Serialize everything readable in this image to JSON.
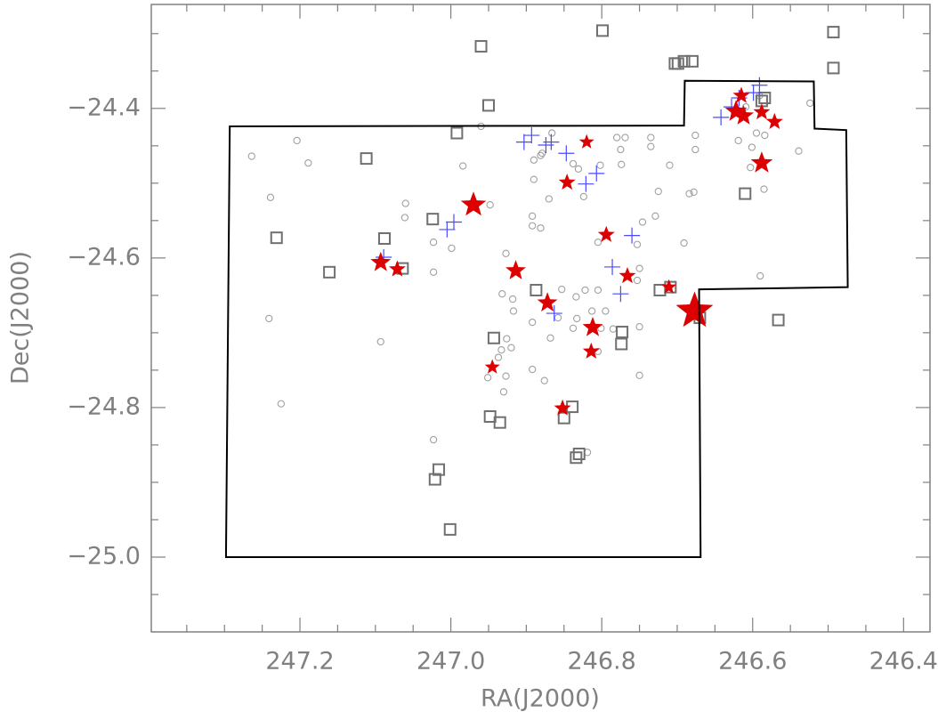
{
  "chart_data": {
    "type": "scatter",
    "xlabel": "RA(J2000)",
    "ylabel": "Dec(J2000)",
    "xlim": [
      247.397,
      246.365
    ],
    "ylim": [
      -25.1,
      -24.261
    ],
    "xticks": [
      247.2,
      {
        "value": 247,
        "label": "247.0"
      },
      246.8,
      246.6,
      246.4
    ],
    "yticks": [
      {
        "value": -24.4,
        "label": "−24.4"
      },
      {
        "value": -24.6,
        "label": "−24.6"
      },
      {
        "value": -24.8,
        "label": "−24.8"
      },
      {
        "value": -25,
        "label": "−25.0"
      }
    ],
    "xminorticks": [
      247.35,
      247.3,
      247.25,
      247.15,
      247.1,
      247.05,
      246.95,
      246.9,
      246.85,
      246.75,
      246.7,
      246.65,
      246.55,
      246.5,
      246.45
    ],
    "yminorticks": [
      -24.3,
      -24.35,
      -24.45,
      -24.5,
      -24.55,
      -24.65,
      -24.7,
      -24.75,
      -24.85,
      -24.9,
      -24.95,
      -25.05
    ],
    "series": [
      {
        "marker": "circle",
        "color": "#a0a0a0",
        "x": [
          247.264,
          247.204,
          247.189,
          247.239,
          247.241,
          247.225,
          247.093,
          247.06,
          247.061,
          247.023,
          247.023,
          247.023,
          246.96,
          246.984,
          246.999,
          246.948,
          246.892,
          246.892,
          246.881,
          246.927,
          246.932,
          246.918,
          246.917,
          246.926,
          246.92,
          246.933,
          246.937,
          246.927,
          246.93,
          246.951,
          246.892,
          246.892,
          246.868,
          246.858,
          246.853,
          246.834,
          246.833,
          246.838,
          246.822,
          246.805,
          246.813,
          246.795,
          246.801,
          246.785,
          246.75,
          246.75,
          246.753,
          246.75,
          246.753,
          246.746,
          246.729,
          246.725,
          246.71,
          246.735,
          246.735,
          246.769,
          246.78,
          246.775,
          246.774,
          246.802,
          246.805,
          246.838,
          246.831,
          246.824,
          246.87,
          246.89,
          246.879,
          246.881,
          246.866,
          246.676,
          246.676,
          246.684,
          246.678,
          246.691,
          246.619,
          246.595,
          246.584,
          246.603,
          246.601,
          246.585,
          246.59,
          246.539,
          246.524,
          246.591,
          246.609,
          246.89,
          246.805,
          246.819,
          246.876
        ],
        "values": [
          -24.464,
          -24.443,
          -24.473,
          -24.519,
          -24.681,
          -24.795,
          -24.712,
          -24.527,
          -24.546,
          -24.579,
          -24.619,
          -24.843,
          -24.424,
          -24.477,
          -24.587,
          -24.529,
          -24.544,
          -24.557,
          -24.56,
          -24.594,
          -24.648,
          -24.655,
          -24.671,
          -24.708,
          -24.72,
          -24.723,
          -24.733,
          -24.758,
          -24.779,
          -24.76,
          -24.686,
          -24.749,
          -24.707,
          -24.68,
          -24.642,
          -24.652,
          -24.681,
          -24.694,
          -24.643,
          -24.643,
          -24.671,
          -24.671,
          -24.694,
          -24.695,
          -24.692,
          -24.757,
          -24.63,
          -24.614,
          -24.582,
          -24.552,
          -24.544,
          -24.511,
          -24.476,
          -24.451,
          -24.439,
          -24.439,
          -24.439,
          -24.455,
          -24.475,
          -24.476,
          -24.579,
          -24.474,
          -24.481,
          -24.518,
          -24.521,
          -24.495,
          -24.46,
          -24.463,
          -24.433,
          -24.436,
          -24.455,
          -24.514,
          -24.512,
          -24.58,
          -24.443,
          -24.433,
          -24.436,
          -24.479,
          -24.452,
          -24.508,
          -24.624,
          -24.457,
          -24.393,
          -24.383,
          -24.398,
          -24.469,
          -24.725,
          -24.86,
          -24.764
        ]
      },
      {
        "marker": "square",
        "color": "#707070",
        "x": [
          246.96,
          246.799,
          246.493,
          246.493,
          246.703,
          246.699,
          246.691,
          246.68,
          246.95,
          246.584,
          246.588,
          246.992,
          247.112,
          246.61,
          247.024,
          247.231,
          247.088,
          247.161,
          247.064,
          246.887,
          246.723,
          246.709,
          246.67,
          246.566,
          246.943,
          246.773,
          246.774,
          246.948,
          246.935,
          246.839,
          246.85,
          247.016,
          247.021,
          246.834,
          246.83,
          247.001
        ],
        "values": [
          -24.317,
          -24.296,
          -24.298,
          -24.346,
          -24.34,
          -24.34,
          -24.337,
          -24.337,
          -24.396,
          -24.386,
          -24.39,
          -24.433,
          -24.467,
          -24.514,
          -24.548,
          -24.573,
          -24.574,
          -24.619,
          -24.614,
          -24.643,
          -24.643,
          -24.639,
          -24.68,
          -24.683,
          -24.707,
          -24.699,
          -24.715,
          -24.812,
          -24.82,
          -24.799,
          -24.814,
          -24.883,
          -24.896,
          -24.867,
          -24.862,
          -24.963
        ]
      },
      {
        "marker": "plus",
        "color": "#4a4aff",
        "x": [
          246.903,
          246.893,
          246.874,
          246.867,
          246.847,
          246.821,
          246.807,
          247.005,
          246.996,
          246.76,
          246.786,
          246.775,
          246.863,
          246.642,
          246.628,
          246.618,
          246.599,
          246.591,
          247.089
        ],
        "values": [
          -24.445,
          -24.436,
          -24.449,
          -24.445,
          -24.46,
          -24.501,
          -24.487,
          -24.562,
          -24.552,
          -24.57,
          -24.612,
          -24.648,
          -24.674,
          -24.412,
          -24.398,
          -24.386,
          -24.379,
          -24.369,
          -24.599
        ]
      },
      {
        "marker": "star",
        "color": "#dd0000",
        "x": [
          246.82,
          246.846,
          246.97,
          246.794,
          247.093,
          247.071,
          246.914,
          246.766,
          246.872,
          246.812,
          246.677,
          246.711,
          246.814,
          246.945,
          246.852,
          246.615,
          246.622,
          246.612,
          246.588,
          246.571,
          246.588
        ],
        "values": [
          -24.445,
          -24.499,
          -24.529,
          -24.569,
          -24.606,
          -24.615,
          -24.617,
          -24.624,
          -24.66,
          -24.693,
          -24.671,
          -24.639,
          -24.725,
          -24.746,
          -24.801,
          -24.383,
          -24.404,
          -24.41,
          -24.405,
          -24.418,
          -24.473
        ],
        "sizes": [
          9,
          10,
          15,
          10,
          12,
          10,
          12,
          10,
          12,
          12,
          22,
          9,
          10,
          9,
          10,
          10,
          13,
          12,
          10,
          10,
          13
        ]
      },
      {
        "marker": "polygon",
        "color": "#000000",
        "x": [
          247.293,
          246.691,
          246.69,
          246.519,
          246.518,
          246.476,
          246.474,
          246.671,
          246.669,
          247.298
        ],
        "values": [
          -24.424,
          -24.423,
          -24.363,
          -24.364,
          -24.427,
          -24.429,
          -24.639,
          -24.642,
          -25.0,
          -25.0
        ]
      }
    ]
  }
}
